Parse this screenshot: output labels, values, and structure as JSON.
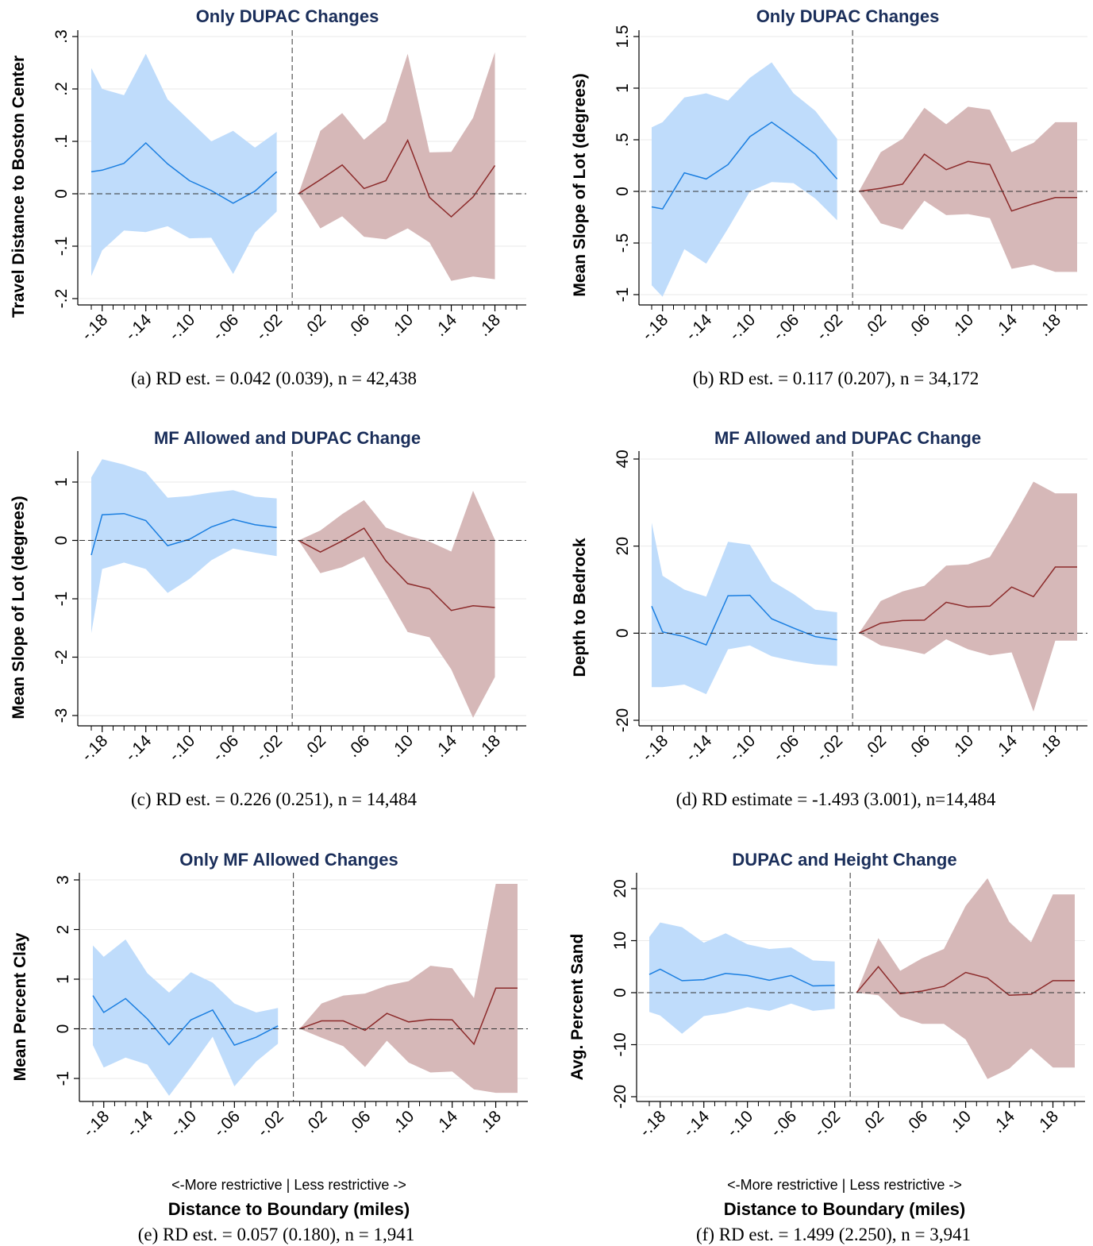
{
  "colors": {
    "left_band": "#bfdcfb",
    "left_line": "#1a7ee0",
    "right_band": "#d6b8b8",
    "right_line": "#8b2a2a",
    "title": "#1a2e5a"
  },
  "x_axis": {
    "tick_labels": [
      "-.18",
      "-.14",
      "-.10",
      "-.06",
      "-.02",
      ".02",
      ".06",
      ".10",
      ".14",
      ".18"
    ],
    "note": "<-More restrictive  |  Less restrictive ->",
    "title": "Distance to Boundary (miles)"
  },
  "chart_data": [
    {
      "type": "line",
      "title": "Only DUPAC Changes",
      "ylabel": "Travel Distance to Boston Center",
      "caption": "(a) RD est. = 0.042 (0.039), n = 42,438",
      "ylim": [
        -0.2,
        0.3
      ],
      "yticks": [
        -0.2,
        -0.1,
        0,
        0.1,
        0.2,
        0.3
      ],
      "ytick_labels": [
        "-.2",
        "-.1",
        "0",
        ".1",
        ".2",
        ".3"
      ],
      "x": [
        -0.19,
        -0.18,
        -0.16,
        -0.14,
        -0.12,
        -0.1,
        -0.08,
        -0.06,
        -0.04,
        -0.02,
        0.0,
        0.02,
        0.04,
        0.06,
        0.08,
        0.1,
        0.12,
        0.14,
        0.16,
        0.18,
        0.2
      ],
      "series": [
        {
          "side": "left",
          "x": [
            -0.19,
            -0.18,
            -0.16,
            -0.14,
            -0.12,
            -0.1,
            -0.08,
            -0.06,
            -0.04,
            -0.02
          ],
          "estimate": [
            0.042,
            0.045,
            0.058,
            0.097,
            0.057,
            0.025,
            0.006,
            -0.018,
            0.005,
            0.042
          ],
          "upper": [
            0.24,
            0.2,
            0.188,
            0.267,
            0.18,
            0.14,
            0.1,
            0.12,
            0.088,
            0.118
          ],
          "lower": [
            -0.157,
            -0.108,
            -0.07,
            -0.073,
            -0.062,
            -0.085,
            -0.084,
            -0.153,
            -0.074,
            -0.034
          ]
        },
        {
          "side": "right",
          "x": [
            0.0,
            0.02,
            0.04,
            0.06,
            0.08,
            0.1,
            0.12,
            0.14,
            0.16,
            0.18
          ],
          "estimate": [
            0.0,
            0.027,
            0.055,
            0.01,
            0.025,
            0.102,
            -0.007,
            -0.044,
            -0.006,
            0.054
          ],
          "upper": [
            0.0,
            0.12,
            0.154,
            0.103,
            0.138,
            0.267,
            0.079,
            0.08,
            0.145,
            0.27
          ],
          "lower": [
            0.0,
            -0.066,
            -0.043,
            -0.082,
            -0.087,
            -0.066,
            -0.093,
            -0.166,
            -0.158,
            -0.163
          ]
        }
      ]
    },
    {
      "type": "line",
      "title": "Only DUPAC Changes",
      "ylabel": "Mean Slope of Lot (degrees)",
      "caption": "(b) RD est. = 0.117 (0.207), n = 34,172",
      "ylim": [
        -1,
        1.5
      ],
      "yticks": [
        -1,
        -0.5,
        0,
        0.5,
        1,
        1.5
      ],
      "ytick_labels": [
        "-1",
        "-.5",
        "0",
        ".5",
        "1",
        "1.5"
      ],
      "x": [
        -0.19,
        -0.18,
        -0.16,
        -0.14,
        -0.12,
        -0.1,
        -0.08,
        -0.06,
        -0.04,
        -0.02,
        0.0,
        0.02,
        0.04,
        0.06,
        0.08,
        0.1,
        0.12,
        0.14,
        0.16,
        0.18,
        0.2
      ],
      "series": [
        {
          "side": "left",
          "x": [
            -0.19,
            -0.18,
            -0.16,
            -0.14,
            -0.12,
            -0.1,
            -0.08,
            -0.06,
            -0.04,
            -0.02
          ],
          "estimate": [
            -0.15,
            -0.17,
            0.18,
            0.12,
            0.26,
            0.53,
            0.67,
            0.52,
            0.36,
            0.12
          ],
          "upper": [
            0.62,
            0.67,
            0.91,
            0.95,
            0.88,
            1.1,
            1.25,
            0.95,
            0.78,
            0.51
          ],
          "lower": [
            -0.91,
            -1.02,
            -0.56,
            -0.7,
            -0.36,
            0.0,
            0.09,
            0.08,
            -0.07,
            -0.28
          ]
        },
        {
          "side": "right",
          "x": [
            0.0,
            0.02,
            0.04,
            0.06,
            0.08,
            0.1,
            0.12,
            0.14,
            0.16,
            0.18,
            0.2
          ],
          "estimate": [
            0.0,
            0.03,
            0.07,
            0.36,
            0.21,
            0.29,
            0.26,
            -0.19,
            -0.12,
            -0.06,
            -0.06
          ],
          "upper": [
            0.0,
            0.38,
            0.51,
            0.81,
            0.65,
            0.82,
            0.79,
            0.38,
            0.47,
            0.67,
            0.67
          ],
          "lower": [
            0.0,
            -0.31,
            -0.37,
            -0.09,
            -0.23,
            -0.22,
            -0.26,
            -0.75,
            -0.71,
            -0.78,
            -0.78
          ]
        }
      ]
    },
    {
      "type": "line",
      "title": "MF Allowed and DUPAC Change",
      "ylabel": "Mean Slope of Lot (degrees)",
      "caption": "(c) RD est. = 0.226 (0.251), n = 14,484",
      "ylim": [
        -3,
        1
      ],
      "yticks": [
        -3,
        -2,
        -1,
        0,
        1
      ],
      "ytick_labels": [
        "-3",
        "-2",
        "-1",
        "0",
        "1"
      ],
      "x": [
        -0.19,
        -0.18,
        -0.16,
        -0.14,
        -0.12,
        -0.1,
        -0.08,
        -0.06,
        -0.04,
        -0.02,
        0.0,
        0.02,
        0.04,
        0.06,
        0.08,
        0.1,
        0.12,
        0.14,
        0.16,
        0.18,
        0.2
      ],
      "series": [
        {
          "side": "left",
          "x": [
            -0.19,
            -0.18,
            -0.16,
            -0.14,
            -0.12,
            -0.1,
            -0.08,
            -0.06,
            -0.04,
            -0.02
          ],
          "estimate": [
            -0.25,
            0.44,
            0.46,
            0.34,
            -0.09,
            0.02,
            0.23,
            0.36,
            0.27,
            0.22
          ],
          "upper": [
            1.08,
            1.39,
            1.3,
            1.17,
            0.73,
            0.76,
            0.82,
            0.86,
            0.75,
            0.72
          ],
          "lower": [
            -1.59,
            -0.49,
            -0.38,
            -0.49,
            -0.9,
            -0.66,
            -0.34,
            -0.14,
            -0.21,
            -0.27
          ]
        },
        {
          "side": "right",
          "x": [
            0.0,
            0.02,
            0.04,
            0.06,
            0.08,
            0.1,
            0.12,
            0.14,
            0.16,
            0.18
          ],
          "estimate": [
            0.0,
            -0.2,
            -0.01,
            0.21,
            -0.35,
            -0.74,
            -0.83,
            -1.2,
            -1.12,
            -1.15
          ],
          "upper": [
            0.0,
            0.17,
            0.45,
            0.69,
            0.22,
            0.08,
            -0.02,
            -0.19,
            0.85,
            0.01
          ],
          "lower": [
            0.0,
            -0.56,
            -0.46,
            -0.28,
            -0.91,
            -1.57,
            -1.66,
            -2.21,
            -3.04,
            -2.34
          ]
        }
      ]
    },
    {
      "type": "line",
      "title": "MF Allowed and DUPAC Change",
      "ylabel": "Depth to Bedrock",
      "caption": "(d) RD estimate = -1.493 (3.001), n=14,484",
      "ylim": [
        -20,
        40
      ],
      "yticks": [
        -20,
        0,
        20,
        40
      ],
      "ytick_labels": [
        "-20",
        "0",
        "20",
        "40"
      ],
      "x": [
        -0.19,
        -0.18,
        -0.16,
        -0.14,
        -0.12,
        -0.1,
        -0.08,
        -0.06,
        -0.04,
        -0.02,
        0.0,
        0.02,
        0.04,
        0.06,
        0.08,
        0.1,
        0.12,
        0.14,
        0.16,
        0.18,
        0.2
      ],
      "series": [
        {
          "side": "left",
          "x": [
            -0.19,
            -0.18,
            -0.16,
            -0.14,
            -0.12,
            -0.1,
            -0.08,
            -0.06,
            -0.04,
            -0.02
          ],
          "estimate": [
            6.2,
            0.3,
            -0.8,
            -2.7,
            8.6,
            8.7,
            3.3,
            1.2,
            -0.8,
            -1.5
          ],
          "upper": [
            25.4,
            13.2,
            10.0,
            8.4,
            21.0,
            20.3,
            12.0,
            9.0,
            5.4,
            4.8
          ],
          "lower": [
            -12.4,
            -12.4,
            -11.8,
            -14.0,
            -3.7,
            -2.8,
            -5.3,
            -6.4,
            -7.2,
            -7.5
          ]
        },
        {
          "side": "right",
          "x": [
            0.0,
            0.02,
            0.04,
            0.06,
            0.08,
            0.1,
            0.12,
            0.14,
            0.16,
            0.18,
            0.2
          ],
          "estimate": [
            0.0,
            2.3,
            2.9,
            3.0,
            7.1,
            6.0,
            6.2,
            10.6,
            8.4,
            15.2,
            15.2
          ],
          "upper": [
            0.0,
            7.4,
            9.6,
            10.9,
            15.5,
            15.8,
            17.5,
            25.8,
            34.8,
            32.1,
            32.1
          ],
          "lower": [
            0.0,
            -2.8,
            -3.7,
            -4.8,
            -1.4,
            -3.7,
            -5.1,
            -4.4,
            -18.0,
            -1.7,
            -1.7
          ]
        }
      ]
    },
    {
      "type": "line",
      "title": "Only MF Allowed Changes",
      "ylabel": "Mean Percent Clay",
      "caption": "(e) RD est. = 0.057 (0.180), n = 1,941",
      "ylim": [
        -1,
        3
      ],
      "yticks": [
        -1,
        0,
        1,
        2,
        3
      ],
      "ytick_labels": [
        "-1",
        "0",
        "1",
        "2",
        "3"
      ],
      "x": [
        -0.19,
        -0.18,
        -0.16,
        -0.14,
        -0.12,
        -0.1,
        -0.08,
        -0.06,
        -0.04,
        -0.02,
        0.0,
        0.02,
        0.04,
        0.06,
        0.08,
        0.1,
        0.12,
        0.14,
        0.16,
        0.18,
        0.2
      ],
      "series": [
        {
          "side": "left",
          "x": [
            -0.19,
            -0.18,
            -0.16,
            -0.14,
            -0.12,
            -0.1,
            -0.08,
            -0.06,
            -0.04,
            -0.02
          ],
          "estimate": [
            0.67,
            0.33,
            0.61,
            0.2,
            -0.32,
            0.18,
            0.38,
            -0.33,
            -0.17,
            0.06
          ],
          "upper": [
            1.68,
            1.45,
            1.8,
            1.12,
            0.73,
            1.14,
            0.93,
            0.51,
            0.33,
            0.42
          ],
          "lower": [
            -0.33,
            -0.78,
            -0.58,
            -0.72,
            -1.35,
            -0.77,
            -0.16,
            -1.16,
            -0.66,
            -0.3
          ]
        },
        {
          "side": "right",
          "x": [
            0.0,
            0.02,
            0.04,
            0.06,
            0.08,
            0.1,
            0.12,
            0.14,
            0.16,
            0.18,
            0.2
          ],
          "estimate": [
            0.0,
            0.16,
            0.16,
            -0.03,
            0.31,
            0.14,
            0.19,
            0.18,
            -0.31,
            0.82,
            0.82
          ],
          "upper": [
            0.0,
            0.51,
            0.67,
            0.71,
            0.87,
            0.96,
            1.27,
            1.22,
            0.62,
            2.92,
            2.92
          ],
          "lower": [
            0.0,
            -0.18,
            -0.35,
            -0.77,
            -0.24,
            -0.68,
            -0.88,
            -0.86,
            -1.22,
            -1.29,
            -1.29
          ]
        }
      ]
    },
    {
      "type": "line",
      "title": "DUPAC and Height Change",
      "ylabel": "Avg. Percent Sand",
      "caption": "(f) RD est. = 1.499 (2.250), n = 3,941",
      "ylim": [
        -20,
        20
      ],
      "yticks": [
        -20,
        -10,
        0,
        10,
        20
      ],
      "ytick_labels": [
        "-20",
        "-10",
        "0",
        "10",
        "20"
      ],
      "x": [
        -0.19,
        -0.18,
        -0.16,
        -0.14,
        -0.12,
        -0.1,
        -0.08,
        -0.06,
        -0.04,
        -0.02,
        0.0,
        0.02,
        0.04,
        0.06,
        0.08,
        0.1,
        0.12,
        0.14,
        0.16,
        0.18,
        0.2
      ],
      "series": [
        {
          "side": "left",
          "x": [
            -0.19,
            -0.18,
            -0.16,
            -0.14,
            -0.12,
            -0.1,
            -0.08,
            -0.06,
            -0.04,
            -0.02
          ],
          "estimate": [
            3.5,
            4.5,
            2.3,
            2.5,
            3.7,
            3.3,
            2.4,
            3.3,
            1.3,
            1.4
          ],
          "upper": [
            10.7,
            13.5,
            12.6,
            9.6,
            11.4,
            9.3,
            8.4,
            8.7,
            6.2,
            6.0
          ],
          "lower": [
            -3.7,
            -4.4,
            -7.9,
            -4.5,
            -3.9,
            -2.8,
            -3.5,
            -2.1,
            -3.5,
            -3.1
          ]
        },
        {
          "side": "right",
          "x": [
            0.0,
            0.02,
            0.04,
            0.06,
            0.08,
            0.1,
            0.12,
            0.14,
            0.16,
            0.18,
            0.2
          ],
          "estimate": [
            0.0,
            5.0,
            -0.2,
            0.3,
            1.2,
            3.9,
            2.8,
            -0.5,
            -0.3,
            2.3,
            2.3
          ],
          "upper": [
            0.0,
            10.5,
            4.2,
            6.6,
            8.4,
            16.7,
            22.0,
            13.6,
            9.7,
            18.9,
            18.9
          ],
          "lower": [
            0.0,
            -0.5,
            -4.6,
            -6.0,
            -6.0,
            -9.0,
            -16.6,
            -14.6,
            -10.7,
            -14.4,
            -14.4
          ]
        }
      ]
    }
  ]
}
